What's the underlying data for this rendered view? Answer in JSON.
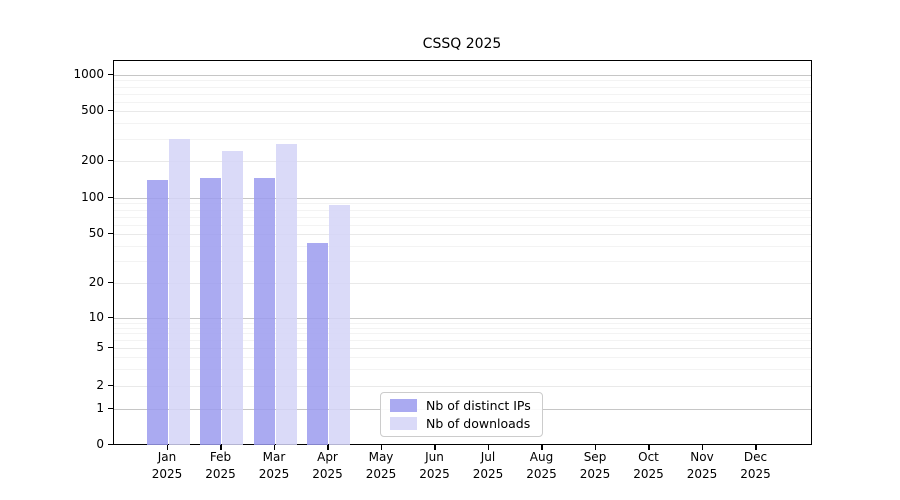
{
  "chart_data": {
    "type": "bar",
    "title": "CSSQ 2025",
    "categories": [
      "Jan 2025",
      "Feb 2025",
      "Mar 2025",
      "Apr 2025",
      "May 2025",
      "Jun 2025",
      "Jul 2025",
      "Aug 2025",
      "Sep 2025",
      "Oct 2025",
      "Nov 2025",
      "Dec 2025"
    ],
    "series": [
      {
        "name": "Nb of distinct IPs",
        "color": "#9b9bee",
        "values": [
          140,
          145,
          145,
          42,
          0,
          0,
          0,
          0,
          0,
          0,
          0,
          0
        ]
      },
      {
        "name": "Nb of downloads",
        "color": "#d4d4f7",
        "values": [
          300,
          240,
          275,
          87,
          0,
          0,
          0,
          0,
          0,
          0,
          0,
          0
        ]
      }
    ],
    "xlabel": "",
    "ylabel": "",
    "yscale": "symlog",
    "y_ticks": [
      0,
      1,
      2,
      5,
      10,
      20,
      50,
      100,
      200,
      500,
      1000
    ],
    "ylim": [
      0,
      1200
    ],
    "grid": "horizontal major and minor gridlines",
    "legend_position": "inside lower-center-left"
  }
}
